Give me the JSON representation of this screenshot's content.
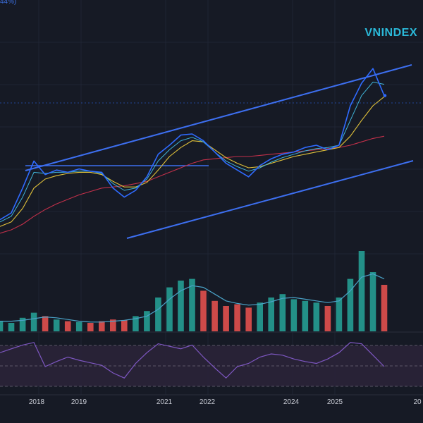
{
  "watermark": "VNINDEX",
  "corner_text": "44%)",
  "colors": {
    "background": "#161a25",
    "price": "#2f6bff",
    "ma_fast": "#40b4d8",
    "ma_mid": "#e0c13a",
    "ma_slow": "#c2304a",
    "channel": "#3d6ff0",
    "volume_up": "#26a69a",
    "volume_down": "#ef5350",
    "volume_ma": "#4aa3c8",
    "rsi": "#7e57c2",
    "rsi_band": "#2a2438"
  },
  "chart_data": [
    {
      "type": "line",
      "title": "VNINDEX",
      "x_ticks": [
        "2018",
        "2019",
        "2021",
        "2022",
        "2024",
        "2025",
        "20"
      ],
      "series": [
        {
          "values": [
            0.24,
            0.3,
            0.52,
            0.76,
            0.64,
            0.68,
            0.66,
            0.69,
            0.67,
            0.66,
            0.52,
            0.44,
            0.5,
            0.62,
            0.82,
            0.9,
            0.99,
            1.0,
            0.94,
            0.84,
            0.74,
            0.68,
            0.62,
            0.72,
            0.78,
            0.82,
            0.84,
            0.88,
            0.9,
            0.86,
            0.9,
            1.25,
            1.45,
            1.58,
            1.34
          ]
        },
        {
          "values": [
            0.22,
            0.27,
            0.44,
            0.66,
            0.65,
            0.66,
            0.66,
            0.67,
            0.67,
            0.65,
            0.56,
            0.5,
            0.52,
            0.6,
            0.76,
            0.86,
            0.94,
            0.97,
            0.93,
            0.84,
            0.76,
            0.71,
            0.67,
            0.7,
            0.75,
            0.79,
            0.82,
            0.85,
            0.87,
            0.88,
            0.9,
            1.12,
            1.34,
            1.46,
            1.44
          ]
        },
        {
          "values": [
            0.18,
            0.22,
            0.34,
            0.52,
            0.6,
            0.63,
            0.65,
            0.66,
            0.66,
            0.64,
            0.58,
            0.53,
            0.53,
            0.57,
            0.68,
            0.8,
            0.88,
            0.94,
            0.93,
            0.86,
            0.79,
            0.74,
            0.7,
            0.71,
            0.74,
            0.77,
            0.8,
            0.82,
            0.84,
            0.86,
            0.88,
            0.98,
            1.12,
            1.25,
            1.33
          ]
        },
        {
          "values": [
            0.12,
            0.15,
            0.2,
            0.27,
            0.33,
            0.38,
            0.42,
            0.46,
            0.49,
            0.52,
            0.53,
            0.54,
            0.56,
            0.58,
            0.62,
            0.66,
            0.7,
            0.74,
            0.77,
            0.78,
            0.79,
            0.8,
            0.8,
            0.81,
            0.82,
            0.83,
            0.84,
            0.85,
            0.86,
            0.87,
            0.88,
            0.9,
            0.93,
            0.96,
            0.98
          ]
        }
      ]
    },
    {
      "type": "bar",
      "values": [
        12,
        10,
        16,
        22,
        18,
        14,
        12,
        11,
        10,
        12,
        14,
        13,
        18,
        24,
        40,
        52,
        60,
        62,
        48,
        36,
        30,
        32,
        28,
        34,
        40,
        44,
        38,
        36,
        34,
        30,
        40,
        62,
        95,
        70,
        55
      ],
      "ma": [
        12,
        12,
        13,
        15,
        17,
        16,
        14,
        12,
        11,
        11,
        12,
        13,
        15,
        18,
        26,
        38,
        48,
        54,
        52,
        44,
        36,
        33,
        31,
        32,
        35,
        39,
        40,
        38,
        36,
        34,
        36,
        48,
        64,
        68,
        62
      ]
    },
    {
      "type": "line",
      "values": [
        62,
        68,
        74,
        78,
        40,
        48,
        55,
        50,
        46,
        42,
        30,
        22,
        45,
        62,
        76,
        72,
        68,
        74,
        55,
        38,
        22,
        40,
        45,
        55,
        60,
        58,
        52,
        48,
        45,
        52,
        62,
        78,
        76,
        58,
        40
      ],
      "ylim": [
        0,
        100
      ]
    }
  ]
}
